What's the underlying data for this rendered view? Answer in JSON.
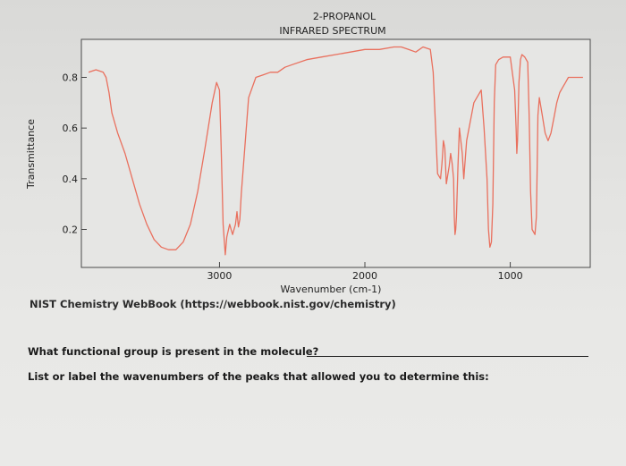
{
  "chart_data": {
    "type": "line",
    "title_lines": [
      "2-PROPANOL",
      "INFRARED SPECTRUM"
    ],
    "xlabel": "Wavenumber (cm-1)",
    "ylabel": "Transmittance",
    "x_reversed": true,
    "xlim": [
      3950,
      450
    ],
    "ylim": [
      0.05,
      0.95
    ],
    "x_ticks": [
      3000,
      2000,
      1000
    ],
    "y_ticks": [
      0.2,
      0.4,
      0.6,
      0.8
    ],
    "grid": false,
    "line_color": "#e9705e",
    "series": [
      {
        "x": [
          3900,
          3850,
          3800,
          3780,
          3760,
          3740,
          3700,
          3650,
          3600,
          3550,
          3500,
          3450,
          3400,
          3350,
          3300,
          3250,
          3200,
          3150,
          3100,
          3050,
          3020,
          3000,
          2990,
          2975,
          2960,
          2950,
          2930,
          2920,
          2910,
          2890,
          2880,
          2870,
          2860,
          2850,
          2800,
          2750,
          2700,
          2650,
          2600,
          2550,
          2500,
          2400,
          2300,
          2200,
          2100,
          2000,
          1900,
          1800,
          1750,
          1700,
          1650,
          1600,
          1550,
          1530,
          1510,
          1500,
          1480,
          1470,
          1465,
          1460,
          1450,
          1440,
          1420,
          1410,
          1400,
          1390,
          1385,
          1380,
          1375,
          1370,
          1360,
          1350,
          1340,
          1330,
          1320,
          1300,
          1250,
          1200,
          1180,
          1160,
          1150,
          1140,
          1130,
          1120,
          1110,
          1100,
          1080,
          1050,
          1000,
          970,
          960,
          955,
          950,
          940,
          930,
          920,
          900,
          880,
          870,
          860,
          850,
          830,
          820,
          815,
          810,
          800,
          780,
          760,
          740,
          720,
          700,
          680,
          660,
          640,
          620,
          600,
          550,
          500
        ],
        "y": [
          0.82,
          0.83,
          0.82,
          0.8,
          0.74,
          0.66,
          0.58,
          0.5,
          0.4,
          0.3,
          0.22,
          0.16,
          0.13,
          0.12,
          0.12,
          0.15,
          0.22,
          0.35,
          0.52,
          0.7,
          0.78,
          0.75,
          0.55,
          0.22,
          0.1,
          0.17,
          0.22,
          0.2,
          0.18,
          0.22,
          0.27,
          0.21,
          0.24,
          0.34,
          0.72,
          0.8,
          0.81,
          0.82,
          0.82,
          0.84,
          0.85,
          0.87,
          0.88,
          0.89,
          0.9,
          0.91,
          0.91,
          0.92,
          0.92,
          0.91,
          0.9,
          0.92,
          0.91,
          0.82,
          0.55,
          0.42,
          0.4,
          0.46,
          0.5,
          0.55,
          0.52,
          0.38,
          0.45,
          0.5,
          0.46,
          0.4,
          0.25,
          0.18,
          0.2,
          0.25,
          0.45,
          0.6,
          0.55,
          0.5,
          0.4,
          0.55,
          0.7,
          0.75,
          0.6,
          0.4,
          0.2,
          0.13,
          0.15,
          0.3,
          0.7,
          0.85,
          0.87,
          0.88,
          0.88,
          0.75,
          0.6,
          0.5,
          0.55,
          0.78,
          0.87,
          0.89,
          0.88,
          0.86,
          0.65,
          0.35,
          0.2,
          0.18,
          0.25,
          0.45,
          0.65,
          0.72,
          0.65,
          0.58,
          0.55,
          0.58,
          0.64,
          0.7,
          0.74,
          0.76,
          0.78,
          0.8,
          0.8,
          0.8
        ]
      }
    ]
  },
  "source": {
    "text": "NIST Chemistry WebBook (https://webbook.nist.gov/chemistry)"
  },
  "questions": {
    "q1": "What functional group is present in the molecule?",
    "q2": "List or label the wavenumbers of the peaks that allowed you to determine this:"
  }
}
